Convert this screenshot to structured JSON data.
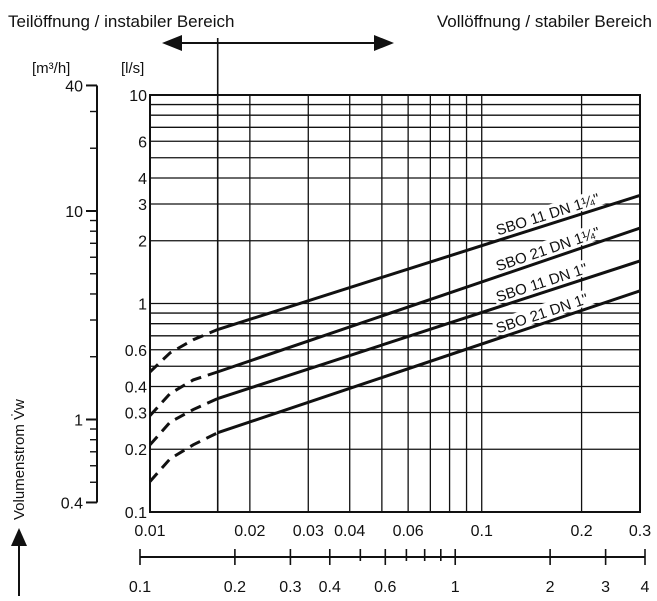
{
  "chart_data": {
    "type": "line",
    "header_left": "Teilöffnung / instabiler Bereich",
    "header_right": "Vollöffnung / stabiler Bereich",
    "ylabel": "Volumenstrom V̇w",
    "y_unit_outer": "[m³/h]",
    "y_unit_inner": "[l/s]",
    "x_scale": "log",
    "y_scale": "log",
    "xlim": [
      0.01,
      0.3
    ],
    "ylim": [
      0.1,
      10
    ],
    "y_ticks_ls": [
      {
        "value": 0.1,
        "label": "0.1"
      },
      {
        "value": 0.2,
        "label": "0.2"
      },
      {
        "value": 0.3,
        "label": "0.3"
      },
      {
        "value": 0.4,
        "label": "0.4"
      },
      {
        "value": 0.6,
        "label": "0.6"
      },
      {
        "value": 1,
        "label": "1"
      },
      {
        "value": 2,
        "label": "2"
      },
      {
        "value": 3,
        "label": "3"
      },
      {
        "value": 4,
        "label": "4"
      },
      {
        "value": 6,
        "label": "6"
      },
      {
        "value": 10,
        "label": "10"
      }
    ],
    "y_ticks_m3h": [
      {
        "value": 0.4,
        "label": "0.4"
      },
      {
        "value": 1,
        "label": "1"
      },
      {
        "value": 10,
        "label": "10"
      },
      {
        "value": 40,
        "label": "40"
      }
    ],
    "x_ticks_top": [
      {
        "value": 0.01,
        "label": "0.01"
      },
      {
        "value": 0.02,
        "label": "0.02"
      },
      {
        "value": 0.03,
        "label": "0.03"
      },
      {
        "value": 0.04,
        "label": "0.04"
      },
      {
        "value": 0.06,
        "label": "0.06"
      },
      {
        "value": 0.1,
        "label": "0.1"
      },
      {
        "value": 0.2,
        "label": "0.2"
      },
      {
        "value": 0.3,
        "label": "0.3"
      }
    ],
    "x_ticks_bottom": [
      {
        "value": 0.1,
        "label": "0.1"
      },
      {
        "value": 0.2,
        "label": "0.2"
      },
      {
        "value": 0.3,
        "label": "0.3"
      },
      {
        "value": 0.4,
        "label": "0.4"
      },
      {
        "value": 0.6,
        "label": "0.6"
      },
      {
        "value": 1,
        "label": "1"
      },
      {
        "value": 2,
        "label": "2"
      },
      {
        "value": 3,
        "label": "3"
      },
      {
        "value": 4,
        "label": "4"
      }
    ],
    "boundary_x": 0.016,
    "series": [
      {
        "name": "SBO 11 DN 1¼\"",
        "x": [
          0.01,
          0.0115,
          0.0135,
          0.016,
          0.3
        ],
        "y": [
          0.47,
          0.58,
          0.67,
          0.75,
          3.3
        ],
        "dashed_until": 0.016
      },
      {
        "name": "SBO 21 DN 1¼\"",
        "x": [
          0.01,
          0.0115,
          0.0135,
          0.016,
          0.3
        ],
        "y": [
          0.29,
          0.37,
          0.43,
          0.47,
          2.3
        ],
        "dashed_until": 0.016
      },
      {
        "name": "SBO 11 DN 1\"",
        "x": [
          0.01,
          0.0115,
          0.0135,
          0.016,
          0.3
        ],
        "y": [
          0.21,
          0.27,
          0.31,
          0.35,
          1.6
        ],
        "dashed_until": 0.016
      },
      {
        "name": "SBO 21 DN 1\"",
        "x": [
          0.01,
          0.0115,
          0.0135,
          0.016,
          0.3
        ],
        "y": [
          0.14,
          0.18,
          0.21,
          0.24,
          1.15
        ],
        "dashed_until": 0.016
      }
    ]
  }
}
